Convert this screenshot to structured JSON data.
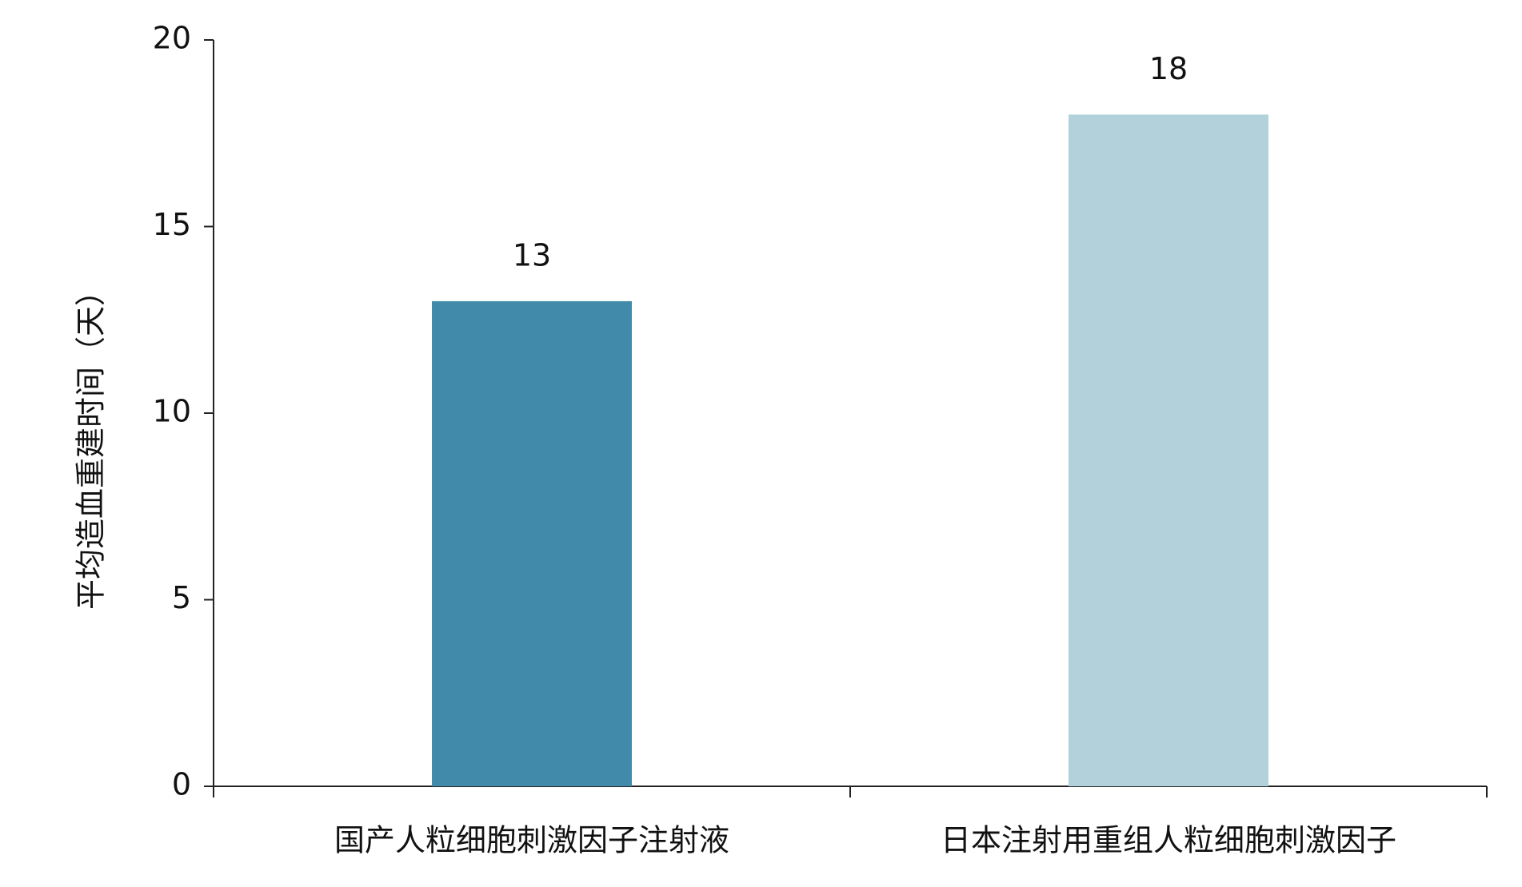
{
  "chart_data": {
    "type": "bar",
    "ylabel": "平均造血重建时间（天）",
    "categories": [
      "国产人粒细胞刺激因子注射液",
      "日本注射用重组人粒细胞刺激因子"
    ],
    "values": [
      13,
      18
    ],
    "colors": [
      "#428aa9",
      "#b2d1db"
    ],
    "ylim": [
      0,
      20
    ],
    "yticks": [
      0,
      5,
      10,
      15,
      20
    ],
    "grid": false
  }
}
